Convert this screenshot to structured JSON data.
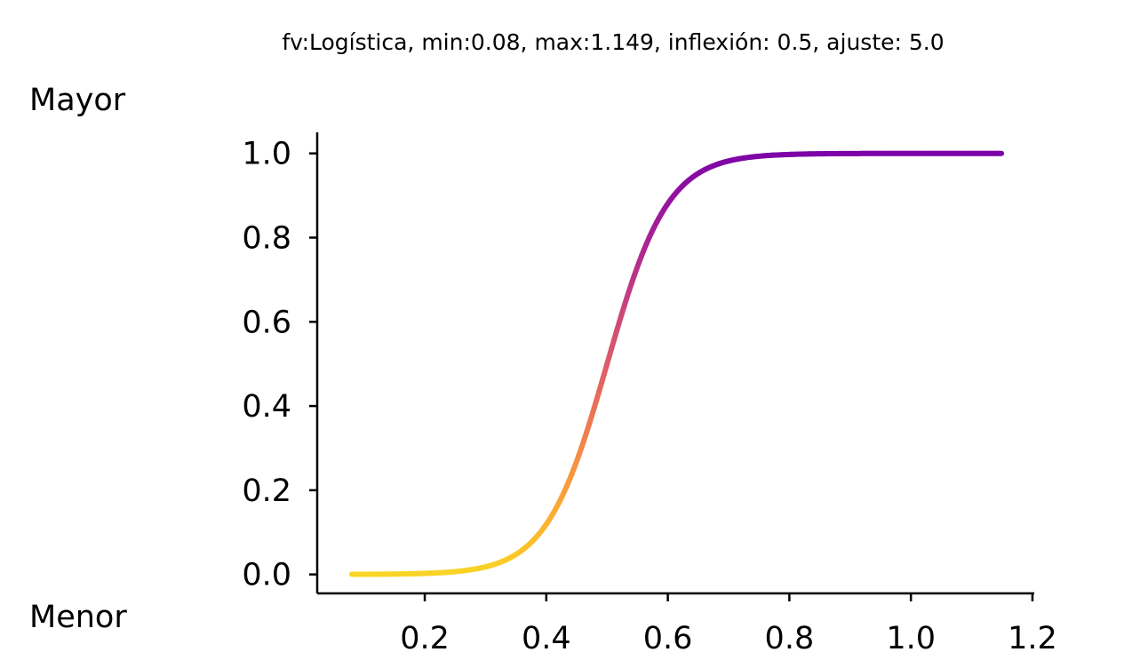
{
  "chart_data": {
    "type": "line",
    "title": "fv:Logística, min:0.08, max:1.149, inflexión: 0.5, ajuste: 5.0",
    "xlabel": "",
    "ylabel": "",
    "top_label": "Mayor",
    "bottom_label": "Menor",
    "xlim": [
      0.023,
      1.203
    ],
    "ylim": [
      -0.045,
      1.05
    ],
    "x_ticks": [
      0.2,
      0.4,
      0.6,
      0.8,
      1.0,
      1.2
    ],
    "x_tick_labels": [
      "0.2",
      "0.4",
      "0.6",
      "0.8",
      "1.0",
      "1.2"
    ],
    "y_ticks": [
      0.0,
      0.2,
      0.4,
      0.6,
      0.8,
      1.0
    ],
    "y_tick_labels": [
      "0.0",
      "0.2",
      "0.4",
      "0.6",
      "0.8",
      "1.0"
    ],
    "grid": false,
    "legend": "none",
    "colormap": "plasma_r",
    "series": [
      {
        "x": [
          0.08,
          0.15,
          0.2,
          0.25,
          0.3,
          0.35,
          0.4,
          0.45,
          0.5,
          0.55,
          0.6,
          0.65,
          0.7,
          0.75,
          0.8,
          0.9,
          1.0,
          1.149
        ],
        "y": [
          0.0,
          0.002,
          0.004,
          0.012,
          0.035,
          0.068,
          0.141,
          0.27,
          0.5,
          0.73,
          0.86,
          0.94,
          0.975,
          0.988,
          0.995,
          0.999,
          1.0,
          1.0
        ]
      }
    ],
    "function": {
      "name": "Logística",
      "min": 0.08,
      "max": 1.149,
      "inflection": 0.5,
      "steepness": 5.0
    }
  }
}
